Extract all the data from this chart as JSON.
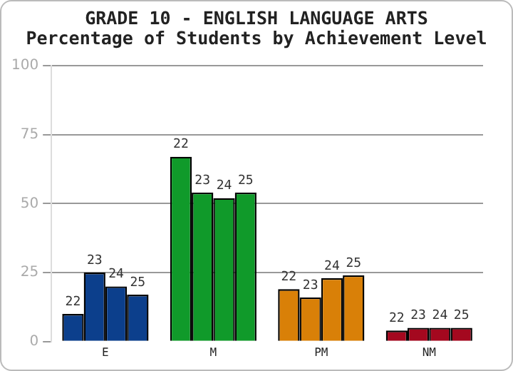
{
  "chart_data": {
    "type": "bar",
    "title": "GRADE 10 - ENGLISH LANGUAGE ARTS",
    "subtitle": "Percentage of Students by Achievement Level",
    "categories": [
      "E",
      "M",
      "PM",
      "NM"
    ],
    "series": [
      {
        "name": "22",
        "colors": [
          "#0c3f8c",
          "#109a2a",
          "#d98008",
          "#a4081f"
        ],
        "values": [
          10,
          67,
          19,
          4
        ]
      },
      {
        "name": "23",
        "colors": [
          "#0c3f8c",
          "#109a2a",
          "#d98008",
          "#a4081f"
        ],
        "values": [
          25,
          54,
          16,
          5
        ]
      },
      {
        "name": "24",
        "colors": [
          "#0c3f8c",
          "#109a2a",
          "#d98008",
          "#a4081f"
        ],
        "values": [
          20,
          52,
          23,
          5
        ]
      },
      {
        "name": "25",
        "colors": [
          "#0c3f8c",
          "#109a2a",
          "#d98008",
          "#a4081f"
        ],
        "values": [
          17,
          54,
          24,
          5
        ]
      }
    ],
    "ylim": [
      0,
      100
    ],
    "yticks": [
      0,
      25,
      50,
      75,
      100
    ],
    "grid": "y",
    "legend": false
  }
}
